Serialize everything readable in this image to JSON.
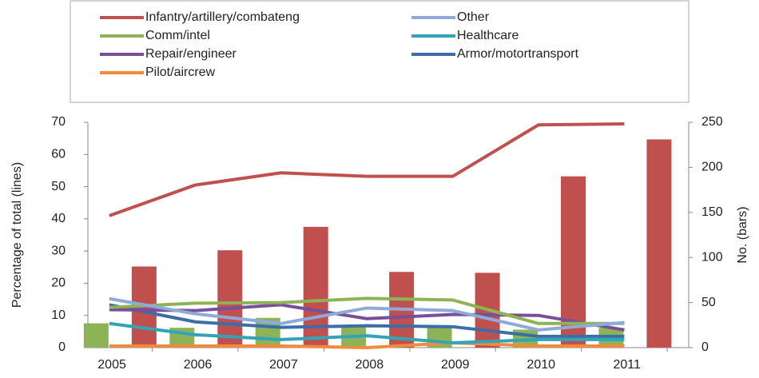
{
  "chart_data": {
    "type": "bar-line",
    "categories": [
      "2005",
      "2006",
      "2007",
      "2008",
      "2009",
      "2010",
      "2011"
    ],
    "ylabel": "Percentage of  total (lines)",
    "y2label": "No. (bars)",
    "ylim": [
      0,
      70
    ],
    "yticks": [
      0,
      10,
      20,
      30,
      40,
      50,
      60,
      70
    ],
    "y2lim": [
      0,
      250
    ],
    "y2ticks": [
      0,
      50,
      100,
      150,
      200,
      250
    ],
    "series": [
      {
        "name": "Infantry/artillery/combateng",
        "color": "#c0504d",
        "values": [
          41,
          50.5,
          54.3,
          53.2,
          53.2,
          69.2,
          69.5
        ],
        "bar_values": [
          90,
          108,
          134,
          84,
          83,
          190,
          231
        ],
        "bar_axis": "y2"
      },
      {
        "name": "Other",
        "color": "#8eaadb",
        "values": [
          15.2,
          10.5,
          7.5,
          12.3,
          11.5,
          5.5,
          7.8
        ]
      },
      {
        "name": "Comm/intel",
        "color": "#8db357",
        "values": [
          12.5,
          13.8,
          14,
          15.3,
          14.8,
          7.5,
          7.5
        ],
        "bar_values": [
          27,
          22,
          33,
          24,
          22,
          20,
          22
        ],
        "bar_axis": "y2"
      },
      {
        "name": "Healthcare",
        "color": "#31a5b8",
        "values": [
          7.5,
          4,
          2.5,
          3.7,
          1.5,
          2.5,
          2.5
        ]
      },
      {
        "name": "Repair/engineer",
        "color": "#7a4f9a",
        "values": [
          11.8,
          11.5,
          13.3,
          9,
          10.3,
          10,
          5.5
        ]
      },
      {
        "name": "Armor/motortransport",
        "color": "#3a6ea5",
        "values": [
          13.3,
          8,
          6.3,
          6.8,
          6.5,
          3.5,
          3.5
        ]
      },
      {
        "name": "Pilot/aircrew",
        "color": "#f08a3c",
        "values": [
          0.5,
          0.5,
          0.5,
          0,
          1.5,
          0.5,
          0.5
        ]
      }
    ]
  }
}
